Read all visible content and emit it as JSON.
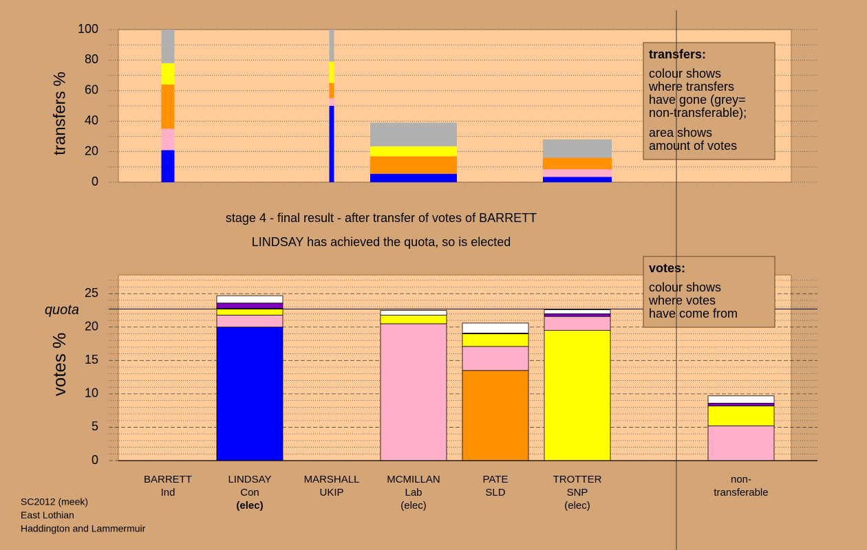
{
  "chart_data": [
    {
      "type": "stacked-bar",
      "ylabel": "transfers %",
      "ylim": [
        0,
        100
      ],
      "yticks": [
        0,
        20,
        40,
        60,
        80,
        100
      ],
      "minor_yticks": [
        10,
        30,
        50,
        70,
        90
      ],
      "grid": "dotted",
      "widths": [
        19,
        null,
        7,
        126,
        null,
        100,
        null,
        null
      ],
      "stacks": [
        [
          {
            "color": "#0000ff",
            "value": 21
          },
          {
            "color": "#ffb0c8",
            "value": 14
          },
          {
            "color": "#ff9000",
            "value": 29
          },
          {
            "color": "#ffff00",
            "value": 14
          },
          {
            "color": "#b0b0b0",
            "value": 22
          }
        ],
        [],
        [
          {
            "color": "#0000ff",
            "value": 50
          },
          {
            "color": "#ffb0c8",
            "value": 5
          },
          {
            "color": "#ff9000",
            "value": 10
          },
          {
            "color": "#ffff00",
            "value": 14
          },
          {
            "color": "#b0b0b0",
            "value": 21
          }
        ],
        [
          {
            "color": "#0000ff",
            "value": 5.5
          },
          {
            "color": "#ff9000",
            "value": 11.5
          },
          {
            "color": "#ffff00",
            "value": 6.5
          },
          {
            "color": "#b0b0b0",
            "value": 15.5
          }
        ],
        [],
        [
          {
            "color": "#0000ff",
            "value": 3.5
          },
          {
            "color": "#ffb0c8",
            "value": 5
          },
          {
            "color": "#ff9000",
            "value": 7.5
          },
          {
            "color": "#b0b0b0",
            "value": 12
          }
        ],
        [],
        []
      ],
      "legend_title": "transfers:",
      "notes": [
        [
          "colour shows",
          "where transfers",
          "have gone (grey=",
          "non-transferable);"
        ],
        [
          "area shows",
          "amount of votes"
        ]
      ]
    },
    {
      "type": "stacked-bar",
      "ylabel": "votes %",
      "ylim": [
        0,
        27.8
      ],
      "yticks": [
        0,
        5,
        10,
        15,
        20,
        25
      ],
      "minor_yticks": [
        1,
        2,
        3,
        4,
        6,
        7,
        8,
        9,
        11,
        12,
        13,
        14,
        16,
        17,
        18,
        19,
        21,
        22,
        23,
        24,
        26,
        27
      ],
      "grid": "dashed",
      "quota": 22.7,
      "quota_label": "quota",
      "categories": [
        [
          "BARRETT",
          "Ind"
        ],
        [
          "LINDSAY",
          "Con"
        ],
        [
          "MARSHALL",
          "UKIP"
        ],
        [
          "MCMILLAN",
          "Lab"
        ],
        [
          "PATE",
          "SLD"
        ],
        [
          "TROTTER",
          "SNP"
        ],
        null,
        [
          "non-",
          "transferable"
        ]
      ],
      "status": [
        null,
        "(elec)",
        null,
        "(elec)",
        null,
        "(elec)",
        null,
        null
      ],
      "bold_status": 1,
      "stacks": [
        [],
        [
          {
            "color": "#0000ff",
            "value": 20
          },
          {
            "color": "#ffb0c8",
            "value": 1.8
          },
          {
            "color": "#ffff00",
            "value": 1.0
          },
          {
            "color": "#8000c0",
            "value": 0.8
          },
          {
            "color": "#ffffff",
            "value": 1.1
          }
        ],
        [],
        [
          {
            "color": "#ffb0c8",
            "value": 20.5
          },
          {
            "color": "#ffff00",
            "value": 1.3
          },
          {
            "color": "#ffffff",
            "value": 0.7
          }
        ],
        [
          {
            "color": "#ff9000",
            "value": 13.5
          },
          {
            "color": "#ffb0c8",
            "value": 3.6
          },
          {
            "color": "#ffff00",
            "value": 1.9
          },
          {
            "color": "#8000c0",
            "value": 0.1
          },
          {
            "color": "#ffffff",
            "value": 1.5
          }
        ],
        [
          {
            "color": "#ffff00",
            "value": 19.5
          },
          {
            "color": "#ffb0c8",
            "value": 2.1
          },
          {
            "color": "#8000c0",
            "value": 0.4
          },
          {
            "color": "#ffffff",
            "value": 0.6
          }
        ],
        [],
        [
          {
            "color": "#ffb0c8",
            "value": 5.2
          },
          {
            "color": "#ffff00",
            "value": 3.0
          },
          {
            "color": "#8000c0",
            "value": 0.4
          },
          {
            "color": "#ffffff",
            "value": 1.1
          }
        ]
      ],
      "legend_title": "votes:",
      "notes": [
        [
          "colour shows",
          "where votes",
          "have come from"
        ]
      ]
    }
  ],
  "captions": [
    "stage 4 - final result - after transfer of votes of BARRETT",
    "LINDSAY has achieved the quota, so is elected"
  ],
  "footer": [
    "SC2012 (meek)",
    "East Lothian",
    "Haddington and Lammermuir"
  ]
}
